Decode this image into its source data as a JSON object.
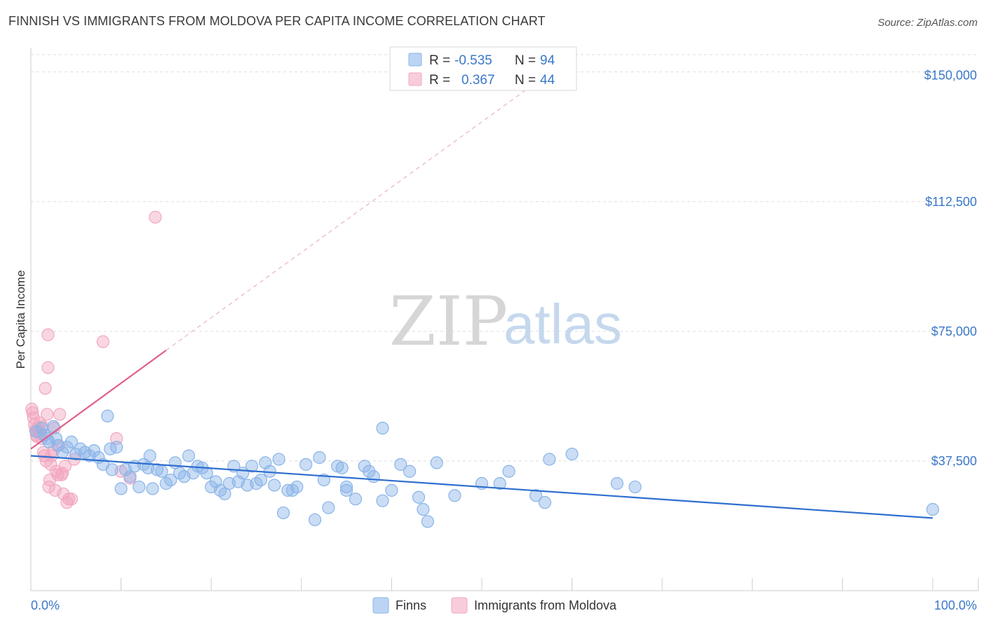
{
  "header": {
    "title": "FINNISH VS IMMIGRANTS FROM MOLDOVA PER CAPITA INCOME CORRELATION CHART",
    "source": "Source: ZipAtlas.com"
  },
  "watermark": {
    "zip": "ZIP",
    "atlas": "atlas"
  },
  "colors": {
    "finns": "#8ab4e8",
    "finns_line": "#2f6fce",
    "moldova": "#f2a7bf",
    "moldova_line": "#e0608c",
    "grid": "#dddddd",
    "axis_text": "#3a78c9"
  },
  "legend": {
    "finns": {
      "r_label": "R =",
      "r_value": "-0.535",
      "n_label": "N =",
      "n_value": "94"
    },
    "moldova": {
      "r_label": "R =",
      "r_value": "0.367",
      "n_label": "N =",
      "n_value": "44"
    }
  },
  "chart_data": {
    "type": "scatter",
    "title": "FINNISH VS IMMIGRANTS FROM MOLDOVA PER CAPITA INCOME CORRELATION CHART",
    "xlabel": "",
    "ylabel": "Per Capita Income",
    "xlim": [
      0,
      100
    ],
    "ylim": [
      0,
      155000
    ],
    "x_tick_labels": [
      "0.0%",
      "100.0%"
    ],
    "y_ticks": [
      37500,
      75000,
      112500,
      150000
    ],
    "y_tick_labels": [
      "$37,500",
      "$75,000",
      "$112,500",
      "$150,000"
    ],
    "grid": true,
    "legend_position": "top-center",
    "series": [
      {
        "name": "Finns",
        "color": "#8ab4e8",
        "trend": {
          "x": [
            0,
            100
          ],
          "y": [
            39000,
            21000
          ]
        },
        "points": [
          [
            0.6,
            46000
          ],
          [
            1.2,
            47000
          ],
          [
            1.5,
            45000
          ],
          [
            1.8,
            44000
          ],
          [
            2.0,
            43000
          ],
          [
            2.5,
            47500
          ],
          [
            2.8,
            44000
          ],
          [
            3.0,
            42000
          ],
          [
            3.5,
            40000
          ],
          [
            4.0,
            41500
          ],
          [
            4.5,
            43000
          ],
          [
            5.0,
            39500
          ],
          [
            5.5,
            41000
          ],
          [
            6.0,
            40000
          ],
          [
            6.5,
            39000
          ],
          [
            7.0,
            40500
          ],
          [
            7.5,
            38500
          ],
          [
            8.0,
            36500
          ],
          [
            8.5,
            50500
          ],
          [
            8.8,
            41000
          ],
          [
            9.0,
            35000
          ],
          [
            9.5,
            41500
          ],
          [
            10.0,
            29500
          ],
          [
            10.5,
            35000
          ],
          [
            11.0,
            33000
          ],
          [
            11.5,
            36000
          ],
          [
            12.0,
            30000
          ],
          [
            12.5,
            36500
          ],
          [
            13.0,
            35500
          ],
          [
            13.2,
            39000
          ],
          [
            13.5,
            29500
          ],
          [
            14.0,
            35000
          ],
          [
            14.5,
            34500
          ],
          [
            15.0,
            31000
          ],
          [
            15.5,
            32000
          ],
          [
            16.0,
            37000
          ],
          [
            16.5,
            34000
          ],
          [
            17.0,
            33000
          ],
          [
            17.5,
            39000
          ],
          [
            18.0,
            34000
          ],
          [
            18.5,
            36000
          ],
          [
            19.0,
            35500
          ],
          [
            19.5,
            34000
          ],
          [
            20.0,
            30000
          ],
          [
            20.5,
            31500
          ],
          [
            21.0,
            29000
          ],
          [
            21.5,
            28000
          ],
          [
            22.0,
            31000
          ],
          [
            22.5,
            36000
          ],
          [
            23.0,
            31500
          ],
          [
            23.5,
            34000
          ],
          [
            24.0,
            30500
          ],
          [
            24.5,
            36000
          ],
          [
            25.0,
            31000
          ],
          [
            25.5,
            32000
          ],
          [
            26.0,
            37000
          ],
          [
            26.5,
            34500
          ],
          [
            27.0,
            30500
          ],
          [
            27.5,
            38000
          ],
          [
            28.0,
            22500
          ],
          [
            28.5,
            29000
          ],
          [
            29.0,
            29000
          ],
          [
            29.5,
            30000
          ],
          [
            30.5,
            36500
          ],
          [
            31.5,
            20500
          ],
          [
            32.0,
            38500
          ],
          [
            32.5,
            32000
          ],
          [
            33.0,
            24000
          ],
          [
            34.0,
            36000
          ],
          [
            34.5,
            35500
          ],
          [
            35.0,
            30000
          ],
          [
            35.0,
            29000
          ],
          [
            36.0,
            26500
          ],
          [
            37.0,
            36000
          ],
          [
            37.5,
            34500
          ],
          [
            38.0,
            33000
          ],
          [
            39.0,
            47000
          ],
          [
            39.0,
            26000
          ],
          [
            40.0,
            29000
          ],
          [
            41.0,
            36500
          ],
          [
            42.0,
            34500
          ],
          [
            43.0,
            27000
          ],
          [
            43.5,
            23500
          ],
          [
            44.0,
            20000
          ],
          [
            45.0,
            37000
          ],
          [
            47.0,
            27500
          ],
          [
            50.0,
            31000
          ],
          [
            52.0,
            31000
          ],
          [
            53.0,
            34500
          ],
          [
            56.0,
            27500
          ],
          [
            57.0,
            25500
          ],
          [
            57.5,
            38000
          ],
          [
            60.0,
            39500
          ],
          [
            65.0,
            31000
          ],
          [
            67.0,
            30000
          ],
          [
            100.0,
            23500
          ]
        ]
      },
      {
        "name": "Immigrants from Moldova",
        "color": "#f2a7bf",
        "trend": {
          "x": [
            0,
            15
          ],
          "y": [
            41000,
            69500
          ]
        },
        "trend_extension": {
          "x": [
            15,
            55
          ],
          "y": [
            69500,
            145000
          ]
        },
        "points": [
          [
            0.1,
            52500
          ],
          [
            0.2,
            51500
          ],
          [
            0.3,
            50000
          ],
          [
            0.4,
            48000
          ],
          [
            0.5,
            46500
          ],
          [
            0.6,
            45000
          ],
          [
            0.7,
            44500
          ],
          [
            0.8,
            47000
          ],
          [
            0.9,
            46000
          ],
          [
            1.0,
            48500
          ],
          [
            1.1,
            45500
          ],
          [
            1.2,
            44000
          ],
          [
            1.3,
            47500
          ],
          [
            1.4,
            40000
          ],
          [
            1.5,
            39000
          ],
          [
            1.6,
            58500
          ],
          [
            1.7,
            37500
          ],
          [
            1.8,
            51000
          ],
          [
            1.9,
            64500
          ],
          [
            2.0,
            30000
          ],
          [
            2.1,
            32000
          ],
          [
            2.2,
            36500
          ],
          [
            2.3,
            39000
          ],
          [
            2.5,
            40500
          ],
          [
            2.6,
            47000
          ],
          [
            2.7,
            29000
          ],
          [
            1.9,
            74000
          ],
          [
            2.8,
            34500
          ],
          [
            3.0,
            33500
          ],
          [
            3.1,
            42000
          ],
          [
            3.2,
            51000
          ],
          [
            3.4,
            33500
          ],
          [
            3.5,
            34000
          ],
          [
            3.6,
            28000
          ],
          [
            3.8,
            36000
          ],
          [
            4.0,
            25500
          ],
          [
            4.2,
            26500
          ],
          [
            4.5,
            26500
          ],
          [
            4.8,
            38000
          ],
          [
            8.0,
            72000
          ],
          [
            9.5,
            44000
          ],
          [
            10.0,
            34500
          ],
          [
            11.0,
            32500
          ],
          [
            13.8,
            108000
          ]
        ]
      }
    ]
  },
  "bottom_legend": {
    "finns": "Finns",
    "moldova": "Immigrants from Moldova"
  }
}
